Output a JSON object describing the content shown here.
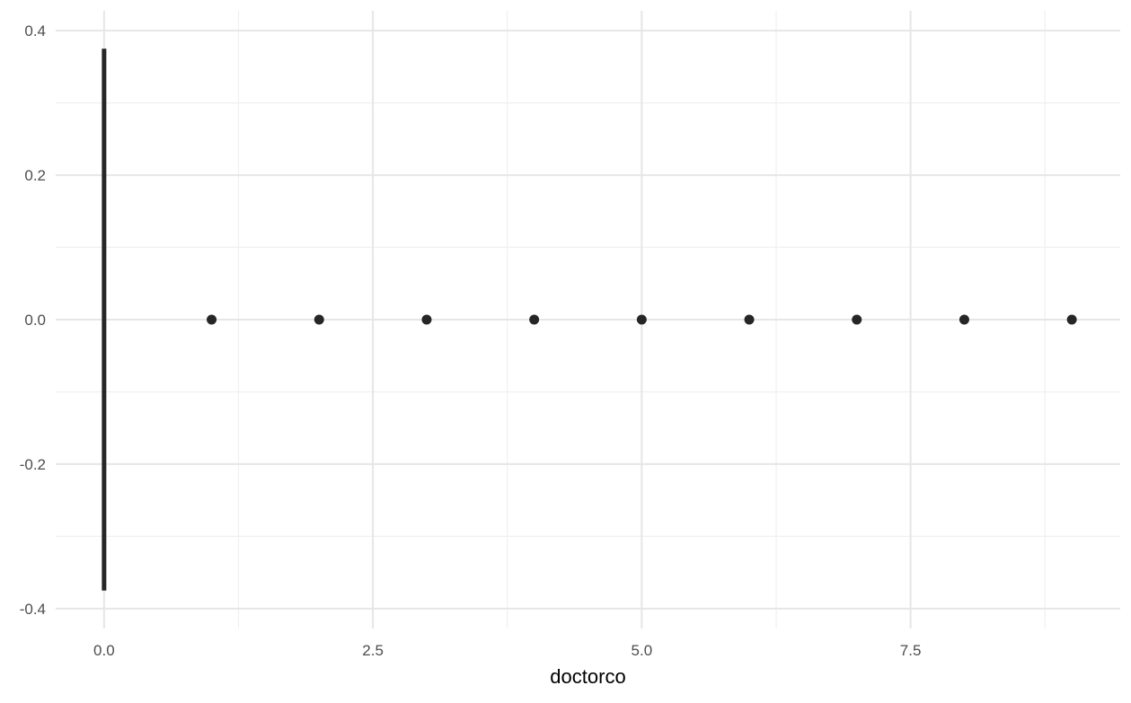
{
  "chart_data": {
    "type": "scatter",
    "title": "",
    "xlabel": "doctorco",
    "ylabel": "",
    "xlim": [
      -0.45,
      9.45
    ],
    "ylim": [
      -0.4,
      0.4
    ],
    "x_ticks": [
      0.0,
      2.5,
      5.0,
      7.5
    ],
    "x_tick_labels": [
      "0.0",
      "2.5",
      "5.0",
      "7.5"
    ],
    "x_minor_ticks": [
      1.25,
      3.75,
      6.25,
      8.75
    ],
    "y_ticks": [
      -0.4,
      -0.2,
      0.0,
      0.2,
      0.4
    ],
    "y_tick_labels": [
      "-0.4",
      "-0.2",
      "0.0",
      "0.2",
      "0.4"
    ],
    "y_minor_ticks": [
      -0.3,
      -0.1,
      0.1,
      0.3
    ],
    "grid": true,
    "points": [
      {
        "x": 1,
        "y": 0
      },
      {
        "x": 2,
        "y": 0
      },
      {
        "x": 3,
        "y": 0
      },
      {
        "x": 4,
        "y": 0
      },
      {
        "x": 5,
        "y": 0
      },
      {
        "x": 6,
        "y": 0
      },
      {
        "x": 7,
        "y": 0
      },
      {
        "x": 8,
        "y": 0
      },
      {
        "x": 9,
        "y": 0
      }
    ],
    "vertical_segment": {
      "x": 0,
      "y_start": -0.375,
      "y_end": 0.375
    },
    "mark_color": "#262626",
    "grid_color": "#e6e6e6",
    "background_color": "#ffffff"
  }
}
